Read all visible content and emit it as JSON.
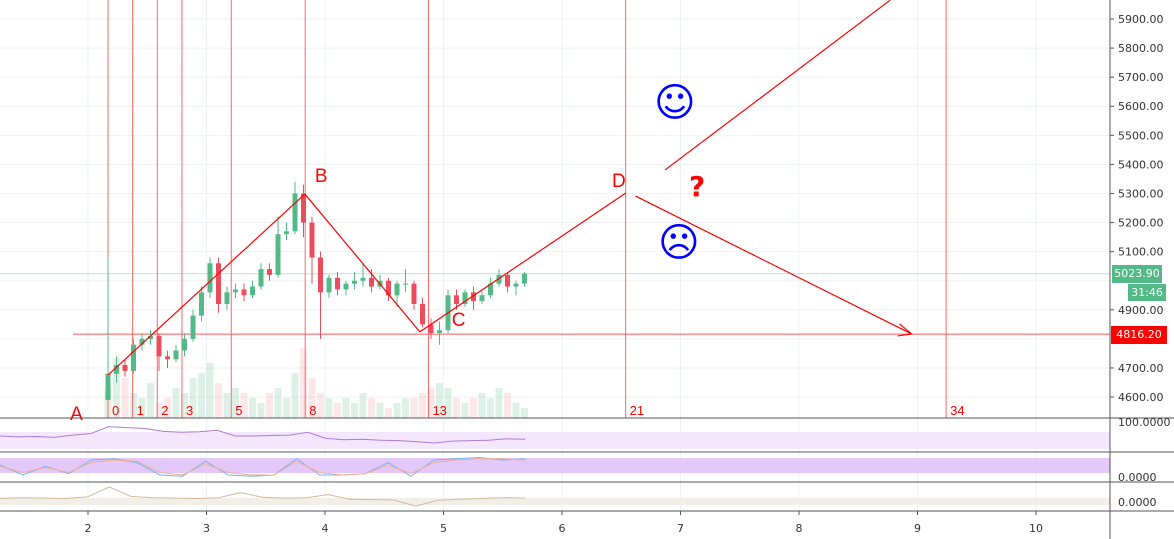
{
  "chart_data": {
    "type": "candlestick",
    "price_ticks": [
      5900,
      5800,
      5700,
      5600,
      5500,
      5400,
      5300,
      5200,
      5100,
      4900,
      4700,
      4600
    ],
    "time_ticks": [
      "2",
      "3",
      "4",
      "5",
      "6",
      "7",
      "8",
      "9",
      "10"
    ],
    "ylim": [
      4560,
      5960
    ],
    "grid": true,
    "colors": {
      "up": "#53b987",
      "down": "#eb4d5c",
      "drawing": "#ff0000",
      "emoji": "#0000ff",
      "current": "#53b987",
      "level": "#ff0000"
    },
    "candles": [
      [
        4590,
        5080,
        4590,
        4680
      ],
      [
        4680,
        4740,
        4650,
        4710
      ],
      [
        4710,
        4730,
        4670,
        4690
      ],
      [
        4690,
        4800,
        4680,
        4780
      ],
      [
        4780,
        4820,
        4760,
        4800
      ],
      [
        4800,
        4830,
        4780,
        4810
      ],
      [
        4810,
        4820,
        4690,
        4740
      ],
      [
        4740,
        4760,
        4700,
        4730
      ],
      [
        4730,
        4780,
        4720,
        4760
      ],
      [
        4760,
        4820,
        4740,
        4800
      ],
      [
        4800,
        4900,
        4790,
        4880
      ],
      [
        4880,
        4980,
        4860,
        4960
      ],
      [
        4960,
        5080,
        4940,
        5060
      ],
      [
        5060,
        5080,
        4890,
        4920
      ],
      [
        4920,
        4980,
        4900,
        4960
      ],
      [
        4960,
        4990,
        4940,
        4970
      ],
      [
        4970,
        4990,
        4930,
        4950
      ],
      [
        4950,
        5000,
        4940,
        4980
      ],
      [
        4980,
        5060,
        4970,
        5040
      ],
      [
        5040,
        5060,
        5000,
        5020
      ],
      [
        5020,
        5220,
        5010,
        5160
      ],
      [
        5160,
        5200,
        5140,
        5170
      ],
      [
        5170,
        5340,
        5160,
        5300
      ],
      [
        5300,
        5330,
        5150,
        5200
      ],
      [
        5200,
        5220,
        4990,
        5080
      ],
      [
        5080,
        5100,
        4800,
        4960
      ],
      [
        4960,
        5020,
        4940,
        5010
      ],
      [
        5010,
        5030,
        4950,
        4970
      ],
      [
        4970,
        5000,
        4950,
        4990
      ],
      [
        4990,
        5030,
        4970,
        5000
      ],
      [
        5000,
        5060,
        4980,
        5010
      ],
      [
        5010,
        5040,
        4960,
        4980
      ],
      [
        4980,
        5020,
        4970,
        5000
      ],
      [
        5000,
        5010,
        4930,
        4950
      ],
      [
        4950,
        5000,
        4910,
        4990
      ],
      [
        4990,
        5040,
        4960,
        4990
      ],
      [
        4990,
        5000,
        4900,
        4920
      ],
      [
        4920,
        4940,
        4840,
        4850
      ],
      [
        4850,
        4870,
        4800,
        4820
      ],
      [
        4820,
        4860,
        4780,
        4830
      ],
      [
        4830,
        4970,
        4820,
        4950
      ],
      [
        4950,
        4970,
        4900,
        4920
      ],
      [
        4920,
        4970,
        4910,
        4960
      ],
      [
        4960,
        4980,
        4900,
        4930
      ],
      [
        4930,
        4970,
        4920,
        4950
      ],
      [
        4950,
        5010,
        4940,
        4990
      ],
      [
        4990,
        5040,
        4980,
        5020
      ],
      [
        5020,
        5030,
        4960,
        4980
      ],
      [
        4980,
        5000,
        4950,
        4990
      ],
      [
        4990,
        5030,
        4980,
        5024
      ]
    ],
    "volume": [
      6,
      12,
      8,
      5,
      4,
      7,
      3,
      4,
      6,
      5,
      8,
      9,
      11,
      7,
      5,
      6,
      5,
      4,
      3,
      5,
      6,
      4,
      9,
      14,
      8,
      5,
      4,
      3,
      4,
      3,
      5,
      4,
      3,
      2,
      3,
      4,
      4,
      5,
      6,
      7,
      6,
      4,
      3,
      4,
      5,
      4,
      6,
      5,
      3,
      2
    ],
    "current_price": "5023.90",
    "countdown": "31:46",
    "level_price": "4816.20",
    "fib_time_zones": [
      "0",
      "1",
      "2",
      "3",
      "5",
      "8",
      "13",
      "21",
      "34"
    ],
    "waves": [
      {
        "label": "A",
        "day": 2.17,
        "price": 4676
      },
      {
        "label": "B",
        "day": 3.83,
        "price": 5298
      },
      {
        "label": "C",
        "day": 4.8,
        "price": 4824
      },
      {
        "label": "D",
        "day": 6.54,
        "price": 5302
      }
    ],
    "scenario_up": {
      "from": [
        6.87,
        5381
      ],
      "to": [
        8.77,
        5965
      ]
    },
    "scenario_down": {
      "from": [
        6.62,
        5291
      ],
      "to": [
        8.95,
        4817
      ]
    },
    "question_mark": "?",
    "smiley": "☺",
    "frowny": "☹",
    "panels": [
      {
        "label": "100.0000",
        "values": [
          50,
          48,
          49,
          47,
          52,
          55,
          70,
          68,
          66,
          60,
          58,
          59,
          62,
          50,
          50,
          51,
          52,
          58,
          45,
          42,
          43,
          41,
          40,
          38,
          35,
          39,
          40,
          41,
          44,
          43
        ]
      },
      {
        "label": "0.0000",
        "k": [
          60,
          20,
          55,
          25,
          80,
          85,
          70,
          20,
          15,
          75,
          20,
          15,
          20,
          85,
          20,
          20,
          25,
          70,
          15,
          80,
          85,
          90,
          80,
          85
        ],
        "d": [
          55,
          30,
          50,
          30,
          70,
          80,
          75,
          30,
          20,
          65,
          30,
          20,
          20,
          75,
          30,
          20,
          25,
          60,
          25,
          70,
          80,
          85,
          85,
          80
        ]
      },
      {
        "label": "0.0000",
        "values": [
          10,
          12,
          11,
          10,
          14,
          40,
          15,
          12,
          11,
          10,
          12,
          25,
          13,
          11,
          12,
          20,
          8,
          7,
          6,
          -10,
          5,
          8,
          10,
          12,
          11
        ]
      }
    ]
  }
}
